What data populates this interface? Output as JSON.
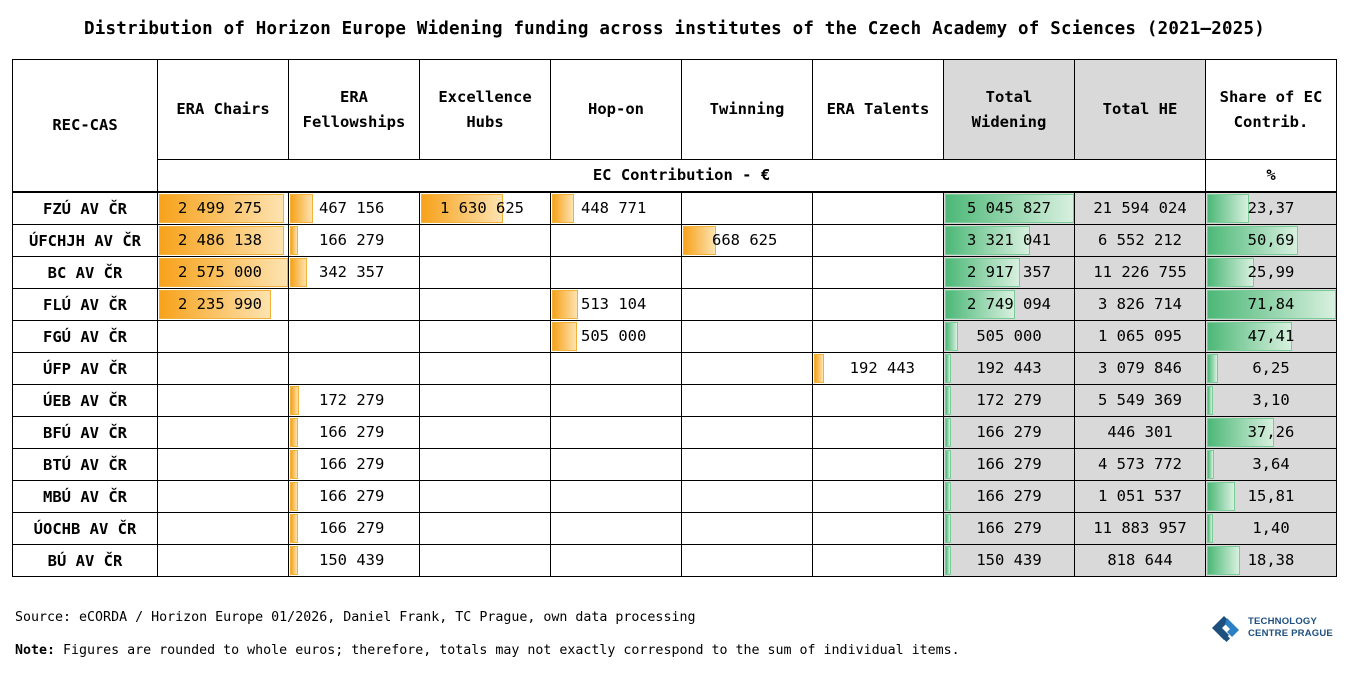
{
  "title": "Distribution of Horizon Europe Widening funding across institutes of the Czech Academy of Sciences (2021–2025)",
  "header": {
    "inst": "REC-CAS",
    "cols": [
      "ERA Chairs",
      "ERA Fellowships",
      "Excellence Hubs",
      "Hop-on",
      "Twinning",
      "ERA Talents",
      "Total Widening",
      "Total HE",
      "Share of EC Contrib."
    ],
    "sub_contribution": "EC Contribution - €",
    "sub_percent": "%"
  },
  "chart_data": {
    "type": "table",
    "title": "Distribution of Horizon Europe Widening funding across institutes of the Czech Academy of Sciences (2021–2025)",
    "unit_label": "EC Contribution - €",
    "share_unit": "%",
    "rows": [
      {
        "inst": "FZÚ AV ČR",
        "chairs": "2 499 275",
        "fellow": "467 156",
        "hubs": "1 630 625",
        "hop": "448 771",
        "twin": "",
        "talents": "",
        "totw": "5 045 827",
        "tothe": "21 594 024",
        "share": "23,37"
      },
      {
        "inst": "ÚFCHJH AV ČR",
        "chairs": "2 486 138",
        "fellow": "166 279",
        "hubs": "",
        "hop": "",
        "twin": "668 625",
        "talents": "",
        "totw": "3 321 041",
        "tothe": "6 552 212",
        "share": "50,69"
      },
      {
        "inst": "BC AV ČR",
        "chairs": "2 575 000",
        "fellow": "342 357",
        "hubs": "",
        "hop": "",
        "twin": "",
        "talents": "",
        "totw": "2 917 357",
        "tothe": "11 226 755",
        "share": "25,99"
      },
      {
        "inst": "FLÚ AV ČR",
        "chairs": "2 235 990",
        "fellow": "",
        "hubs": "",
        "hop": "513 104",
        "twin": "",
        "talents": "",
        "totw": "2 749 094",
        "tothe": "3 826 714",
        "share": "71,84"
      },
      {
        "inst": "FGÚ AV ČR",
        "chairs": "",
        "fellow": "",
        "hubs": "",
        "hop": "505 000",
        "twin": "",
        "talents": "",
        "totw": "505 000",
        "tothe": "1 065 095",
        "share": "47,41"
      },
      {
        "inst": "ÚFP AV ČR",
        "chairs": "",
        "fellow": "",
        "hubs": "",
        "hop": "",
        "twin": "",
        "talents": "192 443",
        "totw": "192 443",
        "tothe": "3 079 846",
        "share": "6,25"
      },
      {
        "inst": "ÚEB AV ČR",
        "chairs": "",
        "fellow": "172 279",
        "hubs": "",
        "hop": "",
        "twin": "",
        "talents": "",
        "totw": "172 279",
        "tothe": "5 549 369",
        "share": "3,10"
      },
      {
        "inst": "BFÚ AV ČR",
        "chairs": "",
        "fellow": "166 279",
        "hubs": "",
        "hop": "",
        "twin": "",
        "talents": "",
        "totw": "166 279",
        "tothe": "446 301",
        "share": "37,26"
      },
      {
        "inst": "BTÚ AV ČR",
        "chairs": "",
        "fellow": "166 279",
        "hubs": "",
        "hop": "",
        "twin": "",
        "talents": "",
        "totw": "166 279",
        "tothe": "4 573 772",
        "share": "3,64"
      },
      {
        "inst": "MBÚ AV ČR",
        "chairs": "",
        "fellow": "166 279",
        "hubs": "",
        "hop": "",
        "twin": "",
        "talents": "",
        "totw": "166 279",
        "tothe": "1 051 537",
        "share": "15,81"
      },
      {
        "inst": "ÚOCHB AV ČR",
        "chairs": "",
        "fellow": "166 279",
        "hubs": "",
        "hop": "",
        "twin": "",
        "talents": "",
        "totw": "166 279",
        "tothe": "11 883 957",
        "share": "1,40"
      },
      {
        "inst": "BÚ AV ČR",
        "chairs": "",
        "fellow": "150 439",
        "hubs": "",
        "hop": "",
        "twin": "",
        "talents": "",
        "totw": "150 439",
        "tothe": "818 644",
        "share": "18,38"
      }
    ]
  },
  "colors": {
    "bar_orange": "#f7a21b",
    "bar_green": "#4db877",
    "shaded": "#d9d9d9",
    "logo": "#1d4f7f"
  },
  "source": "Source: eCORDA / Horizon Europe 01/2026, Daniel Frank, TC Prague, own data processing",
  "note_label": "Note:",
  "note_text": " Figures are rounded to whole euros; therefore, totals may not exactly correspond to the sum of individual items.",
  "logo": {
    "line1": "TECHNOLOGY",
    "line2": "CENTRE PRAGUE",
    "icon": "tc-prague-logo-icon"
  }
}
